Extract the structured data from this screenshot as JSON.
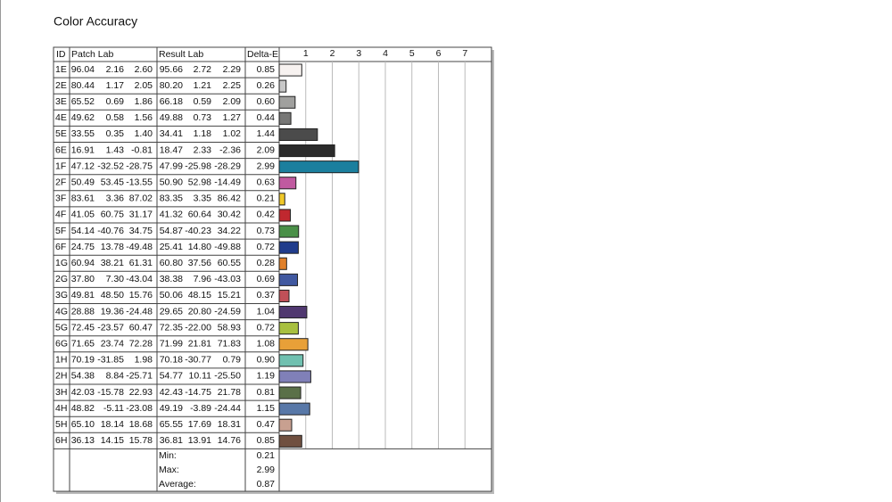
{
  "title": "Color Accuracy",
  "table": {
    "columns": [
      "ID",
      "Patch Lab",
      "Result Lab",
      "Delta-E"
    ],
    "patch_lab": [
      [
        "96.04",
        "2.16",
        "2.60"
      ],
      [
        "80.44",
        "1.17",
        "2.05"
      ],
      [
        "65.52",
        "0.69",
        "1.86"
      ],
      [
        "49.62",
        "0.58",
        "1.56"
      ],
      [
        "33.55",
        "0.35",
        "1.40"
      ],
      [
        "16.91",
        "1.43",
        "-0.81"
      ],
      [
        "47.12",
        "-32.52",
        "-28.75"
      ],
      [
        "50.49",
        "53.45",
        "-13.55"
      ],
      [
        "83.61",
        "3.36",
        "87.02"
      ],
      [
        "41.05",
        "60.75",
        "31.17"
      ],
      [
        "54.14",
        "-40.76",
        "34.75"
      ],
      [
        "24.75",
        "13.78",
        "-49.48"
      ],
      [
        "60.94",
        "38.21",
        "61.31"
      ],
      [
        "37.80",
        "7.30",
        "-43.04"
      ],
      [
        "49.81",
        "48.50",
        "15.76"
      ],
      [
        "28.88",
        "19.36",
        "-24.48"
      ],
      [
        "72.45",
        "-23.57",
        "60.47"
      ],
      [
        "71.65",
        "23.74",
        "72.28"
      ],
      [
        "70.19",
        "-31.85",
        "1.98"
      ],
      [
        "54.38",
        "8.84",
        "-25.71"
      ],
      [
        "42.03",
        "-15.78",
        "22.93"
      ],
      [
        "48.82",
        "-5.11",
        "-23.08"
      ],
      [
        "65.10",
        "18.14",
        "18.68"
      ],
      [
        "36.13",
        "14.15",
        "15.78"
      ]
    ],
    "result_lab": [
      [
        "95.66",
        "2.72",
        "2.29"
      ],
      [
        "80.20",
        "1.21",
        "2.25"
      ],
      [
        "66.18",
        "0.59",
        "2.09"
      ],
      [
        "49.88",
        "0.73",
        "1.27"
      ],
      [
        "34.41",
        "1.18",
        "1.02"
      ],
      [
        "18.47",
        "2.33",
        "-2.36"
      ],
      [
        "47.99",
        "-25.98",
        "-28.29"
      ],
      [
        "50.90",
        "52.98",
        "-14.49"
      ],
      [
        "83.35",
        "3.35",
        "86.42"
      ],
      [
        "41.32",
        "60.64",
        "30.42"
      ],
      [
        "54.87",
        "-40.23",
        "34.22"
      ],
      [
        "25.41",
        "14.80",
        "-49.88"
      ],
      [
        "60.80",
        "37.56",
        "60.55"
      ],
      [
        "38.38",
        "7.96",
        "-43.03"
      ],
      [
        "50.06",
        "48.15",
        "15.21"
      ],
      [
        "29.65",
        "20.80",
        "-24.59"
      ],
      [
        "72.35",
        "-22.00",
        "58.93"
      ],
      [
        "71.99",
        "21.81",
        "71.83"
      ],
      [
        "70.18",
        "-30.77",
        "0.79"
      ],
      [
        "54.77",
        "10.11",
        "-25.50"
      ],
      [
        "42.43",
        "-14.75",
        "21.78"
      ],
      [
        "49.19",
        "-3.89",
        "-24.44"
      ],
      [
        "65.55",
        "17.69",
        "18.31"
      ],
      [
        "36.81",
        "13.91",
        "14.76"
      ]
    ],
    "summary": [
      {
        "label": "Min:",
        "value": "0.21"
      },
      {
        "label": "Max:",
        "value": "2.99"
      },
      {
        "label": "Average:",
        "value": "0.87"
      }
    ]
  },
  "chart_data": {
    "type": "bar",
    "categories": [
      "1E",
      "2E",
      "3E",
      "4E",
      "5E",
      "6E",
      "1F",
      "2F",
      "3F",
      "4F",
      "5F",
      "6F",
      "1G",
      "2G",
      "3G",
      "4G",
      "5G",
      "6G",
      "1H",
      "2H",
      "3H",
      "4H",
      "5H",
      "6H"
    ],
    "values": [
      0.85,
      0.26,
      0.6,
      0.44,
      1.44,
      2.09,
      2.99,
      0.63,
      0.21,
      0.42,
      0.73,
      0.72,
      0.28,
      0.69,
      0.37,
      1.04,
      0.72,
      1.08,
      0.9,
      1.19,
      0.81,
      1.15,
      0.47,
      0.85
    ],
    "value_labels": [
      "0.85",
      "0.26",
      "0.60",
      "0.44",
      "1.44",
      "2.09",
      "2.99",
      "0.63",
      "0.21",
      "0.42",
      "0.73",
      "0.72",
      "0.28",
      "0.69",
      "0.37",
      "1.04",
      "0.72",
      "1.08",
      "0.90",
      "1.19",
      "0.81",
      "1.15",
      "0.47",
      "0.85"
    ],
    "colors": [
      "#f7f2f0",
      "#c8c8c8",
      "#a0a09e",
      "#777776",
      "#4b4b4b",
      "#2b2b2b",
      "#1b7f9e",
      "#c05aa0",
      "#f0c828",
      "#c0282f",
      "#4a9048",
      "#203c8c",
      "#e0802a",
      "#4058a0",
      "#c05058",
      "#503870",
      "#a8c040",
      "#e8a038",
      "#70c0b0",
      "#8080b8",
      "#5a7048",
      "#5878a8",
      "#c8a090",
      "#705040"
    ],
    "xlim": [
      0,
      8
    ],
    "xticks": [
      1,
      2,
      3,
      4,
      5,
      6,
      7
    ],
    "grid": true
  }
}
